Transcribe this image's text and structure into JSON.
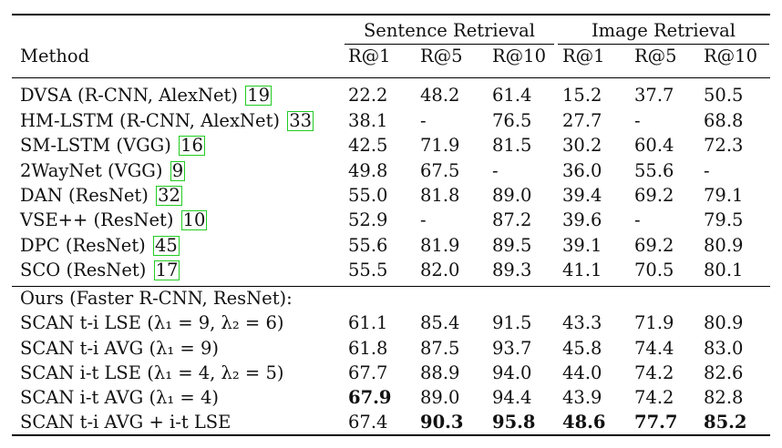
{
  "group_headers": {
    "sentence": "Sentence Retrieval",
    "image": "Image Retrieval"
  },
  "columns": [
    "Method",
    "R@1",
    "R@5",
    "R@10",
    "R@1",
    "R@5",
    "R@10"
  ],
  "baselines": [
    {
      "method": "DVSA (R-CNN, AlexNet)",
      "ref": "19",
      "values": [
        "22.2",
        "48.2",
        "61.4",
        "15.2",
        "37.7",
        "50.5"
      ]
    },
    {
      "method": "HM-LSTM (R-CNN, AlexNet)",
      "ref": "33",
      "values": [
        "38.1",
        "-",
        "76.5",
        "27.7",
        "-",
        "68.8"
      ]
    },
    {
      "method": "SM-LSTM (VGG)",
      "ref": "16",
      "values": [
        "42.5",
        "71.9",
        "81.5",
        "30.2",
        "60.4",
        "72.3"
      ]
    },
    {
      "method": "2WayNet (VGG)",
      "ref": "9",
      "values": [
        "49.8",
        "67.5",
        "-",
        "36.0",
        "55.6",
        "-"
      ]
    },
    {
      "method": "DAN (ResNet)",
      "ref": "32",
      "values": [
        "55.0",
        "81.8",
        "89.0",
        "39.4",
        "69.2",
        "79.1"
      ]
    },
    {
      "method": "VSE++ (ResNet)",
      "ref": "10",
      "values": [
        "52.9",
        "-",
        "87.2",
        "39.6",
        "-",
        "79.5"
      ]
    },
    {
      "method": "DPC (ResNet)",
      "ref": "45",
      "values": [
        "55.6",
        "81.9",
        "89.5",
        "39.1",
        "69.2",
        "80.9"
      ]
    },
    {
      "method": "SCO (ResNet)",
      "ref": "17",
      "values": [
        "55.5",
        "82.0",
        "89.3",
        "41.1",
        "70.5",
        "80.1"
      ]
    }
  ],
  "ours_header": "Ours (Faster R-CNN, ResNet):",
  "ours": [
    {
      "method": "SCAN t-i LSE (λ₁ = 9, λ₂ = 6)",
      "values": [
        "61.1",
        "85.4",
        "91.5",
        "43.3",
        "71.9",
        "80.9"
      ]
    },
    {
      "method": "SCAN t-i AVG (λ₁ = 9)",
      "values": [
        "61.8",
        "87.5",
        "93.7",
        "45.8",
        "74.4",
        "83.0"
      ]
    },
    {
      "method": "SCAN i-t LSE (λ₁ = 4, λ₂ = 5)",
      "values": [
        "67.7",
        "88.9",
        "94.0",
        "44.0",
        "74.2",
        "82.6"
      ]
    },
    {
      "method": "SCAN i-t AVG (λ₁ = 4)",
      "values": [
        "67.9",
        "89.0",
        "94.4",
        "43.9",
        "74.2",
        "82.8"
      ]
    },
    {
      "method": "SCAN t-i AVG + i-t LSE",
      "values": [
        "67.4",
        "90.3",
        "95.8",
        "48.6",
        "77.7",
        "85.2"
      ]
    }
  ]
}
